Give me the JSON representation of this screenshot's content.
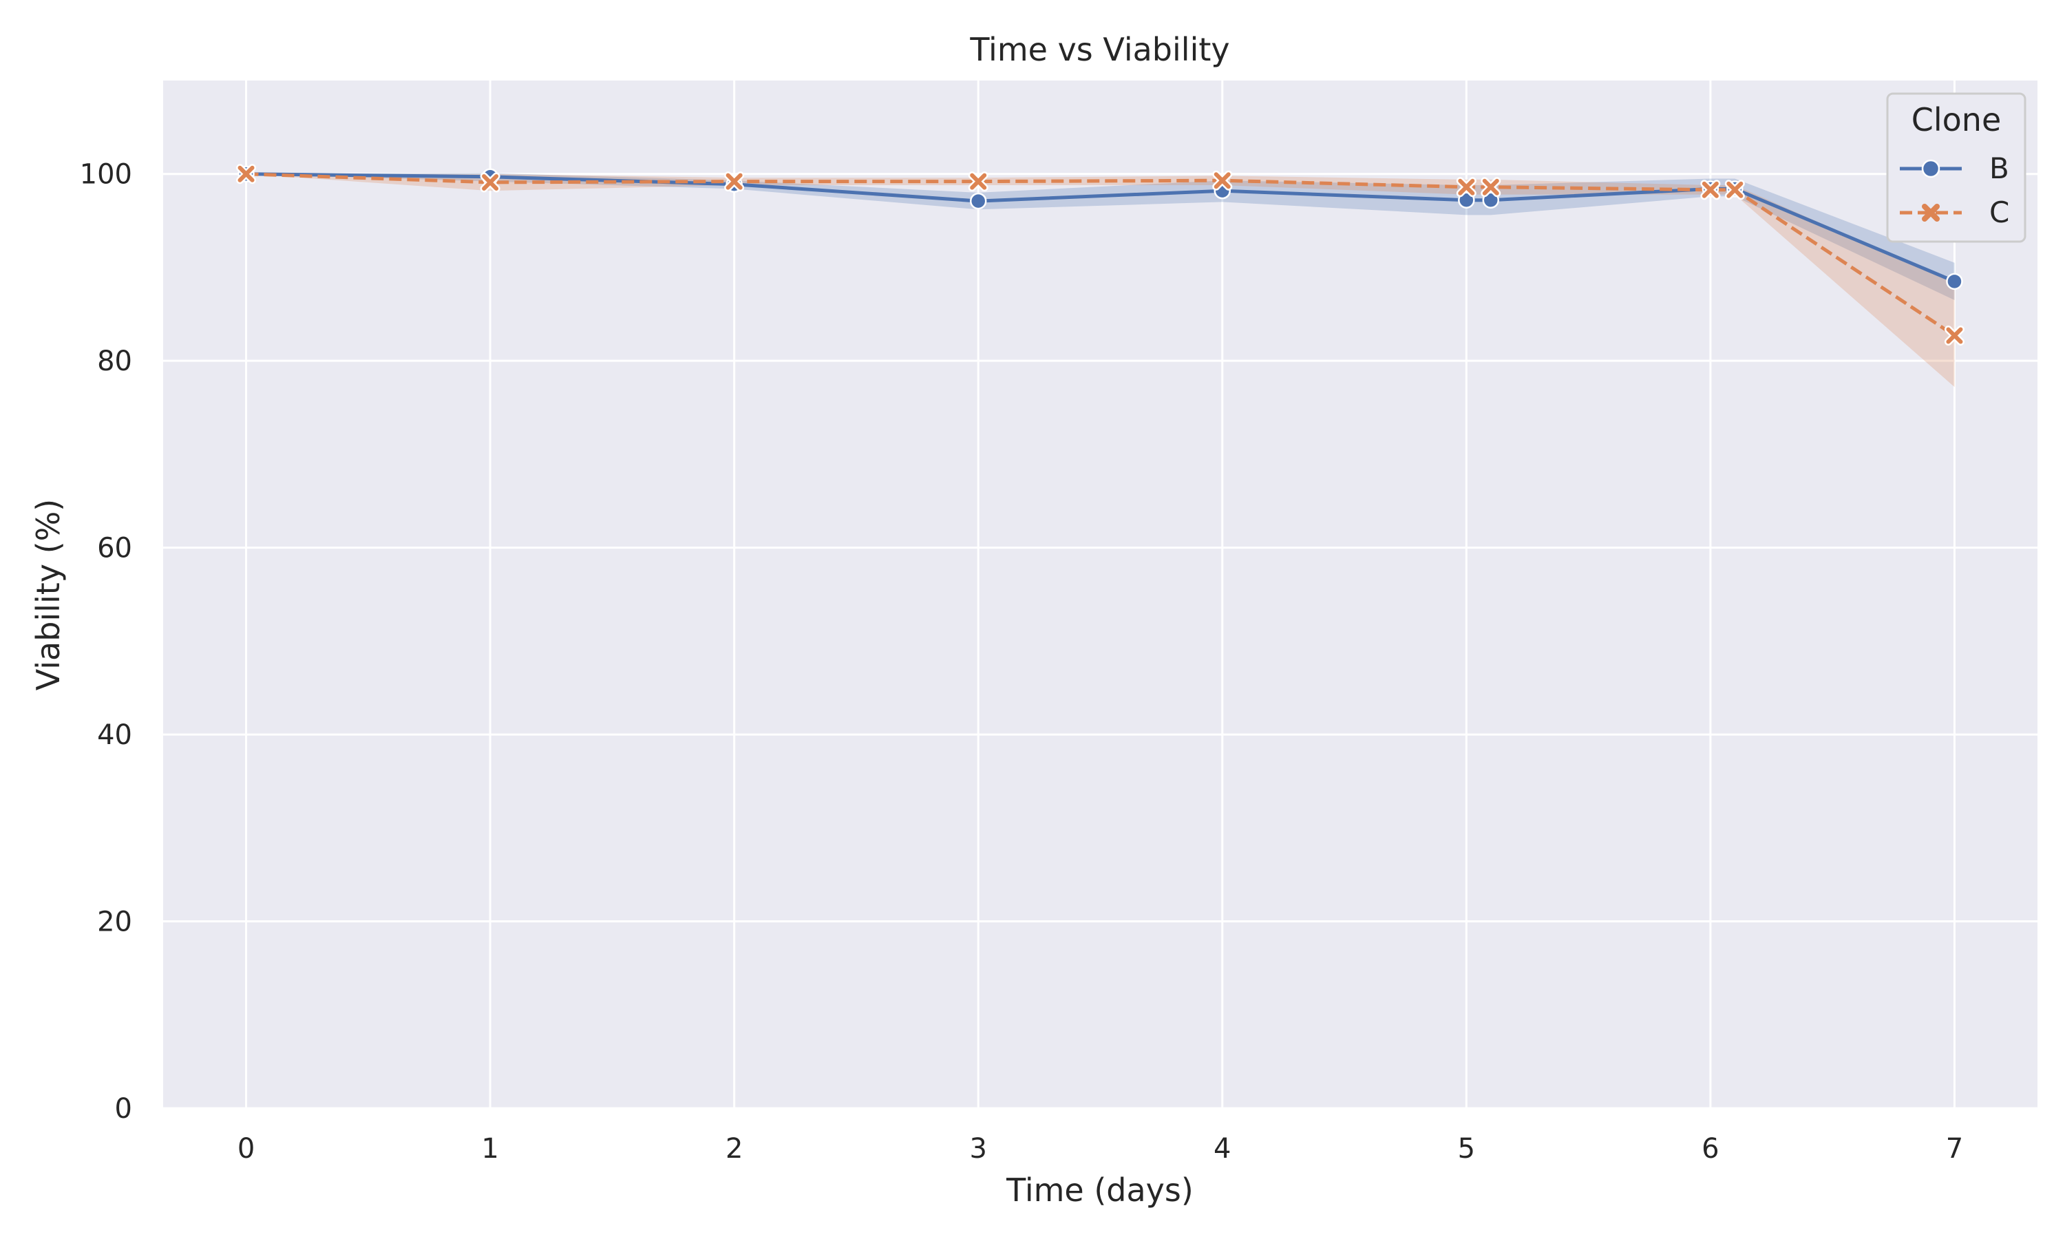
{
  "chart_data": {
    "type": "line",
    "title": "Time vs Viability",
    "xlabel": "Time (days)",
    "ylabel": "Viability (%)",
    "xlim": [
      -0.34,
      7.34
    ],
    "ylim": [
      0,
      110
    ],
    "xticks": [
      0,
      1,
      2,
      3,
      4,
      5,
      6,
      7
    ],
    "yticks": [
      0,
      20,
      40,
      60,
      80,
      100
    ],
    "grid": true,
    "legend_title": "Clone",
    "legend_position": "top-right",
    "background": "#eaeaf2",
    "series": [
      {
        "name": "B",
        "color": "#4c72b0",
        "line_style": "solid",
        "marker": "circle",
        "x": [
          0,
          1,
          2,
          3,
          4,
          5,
          5.1,
          6,
          6.1,
          7
        ],
        "y": [
          100,
          99.7,
          98.9,
          97.1,
          98.2,
          97.2,
          97.2,
          98.4,
          98.4,
          88.5
        ],
        "ci_lower": [
          100,
          99.2,
          98.4,
          96.2,
          97.0,
          95.6,
          95.6,
          97.6,
          97.6,
          86.5
        ],
        "ci_upper": [
          100,
          100.1,
          99.3,
          98.0,
          99.3,
          98.8,
          98.8,
          99.5,
          99.5,
          90.5
        ]
      },
      {
        "name": "C",
        "color": "#dd8452",
        "line_style": "dashed",
        "marker": "x",
        "x": [
          0,
          1,
          2,
          3,
          4,
          5,
          5.1,
          6,
          6.1,
          7
        ],
        "y": [
          100,
          99.1,
          99.2,
          99.2,
          99.3,
          98.6,
          98.6,
          98.3,
          98.3,
          82.7
        ],
        "ci_lower": [
          100,
          98.2,
          98.8,
          98.8,
          98.8,
          97.8,
          97.8,
          97.8,
          97.8,
          77.2
        ],
        "ci_upper": [
          100,
          100.0,
          99.6,
          99.6,
          99.8,
          99.4,
          99.4,
          98.8,
          98.8,
          88.4
        ]
      }
    ]
  }
}
